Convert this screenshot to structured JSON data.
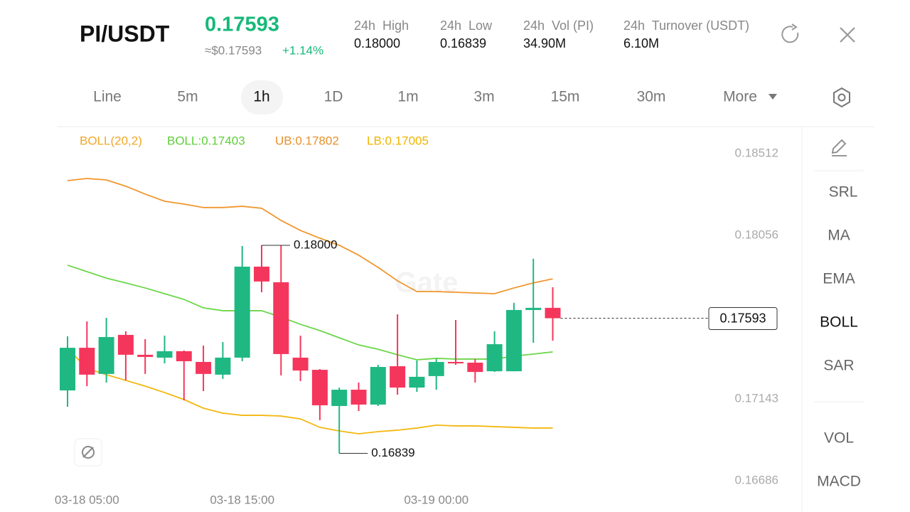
{
  "header": {
    "pair": "PI/USDT",
    "price": "0.17593",
    "usd_price": "≈$0.17593",
    "change": "+1.14%",
    "stats": [
      {
        "label": "24h  High",
        "value": "0.18000"
      },
      {
        "label": "24h  Low",
        "value": "0.16839"
      },
      {
        "label": "24h  Vol (PI)",
        "value": "34.90M"
      },
      {
        "label": "24h  Turnover (USDT)",
        "value": "6.10M"
      }
    ]
  },
  "intervals": [
    "Line",
    "5m",
    "1h",
    "1D",
    "1m",
    "3m",
    "15m",
    "30m",
    "More"
  ],
  "selected_interval": 2,
  "side_menu": [
    "SRL",
    "MA",
    "EMA",
    "BOLL",
    "SAR",
    "VOL",
    "MACD"
  ],
  "selected_indicator": 3,
  "watermark": "Gate",
  "chart_data": {
    "type": "candlestick",
    "categories": [
      null,
      "03-18 05:00",
      null,
      null,
      null,
      null,
      null,
      null,
      null,
      "03-18 15:00",
      null,
      null,
      null,
      null,
      null,
      null,
      null,
      null,
      null,
      "03-19 00:00",
      null,
      null,
      null,
      null,
      null,
      null
    ],
    "open": [
      0.1719,
      0.17428,
      0.17282,
      0.175,
      0.17389,
      0.17373,
      0.17409,
      0.17349,
      0.17278,
      0.17373,
      0.17881,
      0.17794,
      0.17373,
      0.17305,
      0.17103,
      0.17194,
      0.17111,
      0.17325,
      0.17206,
      0.1727,
      0.17349,
      0.17345,
      0.17297,
      0.17297,
      0.17639,
      0.17651
    ],
    "high": [
      0.17492,
      0.17575,
      0.17595,
      0.1752,
      0.17476,
      0.17496,
      0.17413,
      0.1744,
      0.1746,
      0.17996,
      0.18,
      0.18,
      0.17496,
      0.17309,
      0.17206,
      0.17234,
      0.17333,
      0.17615,
      0.17357,
      0.17365,
      0.17583,
      0.17365,
      0.1752,
      0.17679,
      0.17925,
      0.17766
    ],
    "low": [
      0.17099,
      0.17214,
      0.17234,
      0.17246,
      0.17282,
      0.17341,
      0.17135,
      0.17186,
      0.17254,
      0.17353,
      0.17738,
      0.17274,
      0.17242,
      0.17024,
      0.16839,
      0.17075,
      0.17103,
      0.17166,
      0.17182,
      0.17194,
      0.17333,
      0.17234,
      0.17293,
      0.17297,
      0.17456,
      0.17468
    ],
    "close": [
      0.17428,
      0.17278,
      0.17488,
      0.17389,
      0.17377,
      0.17409,
      0.17353,
      0.17282,
      0.17373,
      0.17881,
      0.17798,
      0.17393,
      0.17301,
      0.17107,
      0.17194,
      0.17111,
      0.17321,
      0.17206,
      0.17266,
      0.17349,
      0.17341,
      0.17293,
      0.17448,
      0.17639,
      0.17651,
      0.17593
    ],
    "up_color": "#1fb883",
    "down_color": "#f5365c",
    "legend": [
      "BOLL(20,2)",
      "BOLL:0.17403",
      "UB:0.17802",
      "LB:0.17005"
    ],
    "legend_colors": [
      "#f0a828",
      "#5fcf3a",
      "#e8912b",
      "#f0b400"
    ],
    "series": [
      {
        "color": "#6cd64a",
        "values": [
          0.17889,
          0.17853,
          0.17817,
          0.1779,
          0.17762,
          0.1773,
          0.17698,
          0.17651,
          0.17635,
          0.17635,
          0.17635,
          0.17599,
          0.17559,
          0.17524,
          0.17484,
          0.17444,
          0.1742,
          0.17389,
          0.17361,
          0.17369,
          0.17365,
          0.17365,
          0.17365,
          0.17381,
          0.17393,
          0.17405
        ]
      },
      {
        "color": "#f0962e",
        "values": [
          0.18361,
          0.18373,
          0.18365,
          0.1833,
          0.18286,
          0.18246,
          0.1823,
          0.18211,
          0.18211,
          0.18218,
          0.18207,
          0.18139,
          0.18083,
          0.1804,
          0.18,
          0.17945,
          0.17877,
          0.17802,
          0.17742,
          0.17742,
          0.17738,
          0.17734,
          0.1773,
          0.17762,
          0.1779,
          0.17813
        ]
      },
      {
        "color": "#f2b80f",
        "values": [
          0.17424,
          0.17313,
          0.17278,
          0.17246,
          0.17214,
          0.17178,
          0.17139,
          0.17091,
          0.17063,
          0.17051,
          0.17051,
          0.17047,
          0.17031,
          0.16984,
          0.16964,
          0.16948,
          0.1696,
          0.16968,
          0.1698,
          0.16996,
          0.16992,
          0.16992,
          0.16988,
          0.16984,
          0.1698,
          0.1698
        ]
      }
    ],
    "ylim": [
      0.16686,
      0.18512
    ],
    "yticks": [
      0.18512,
      0.18056,
      0.17143,
      0.16686
    ],
    "annotations": {
      "high": "0.18000",
      "low": "0.16839",
      "last": "0.17593"
    }
  }
}
